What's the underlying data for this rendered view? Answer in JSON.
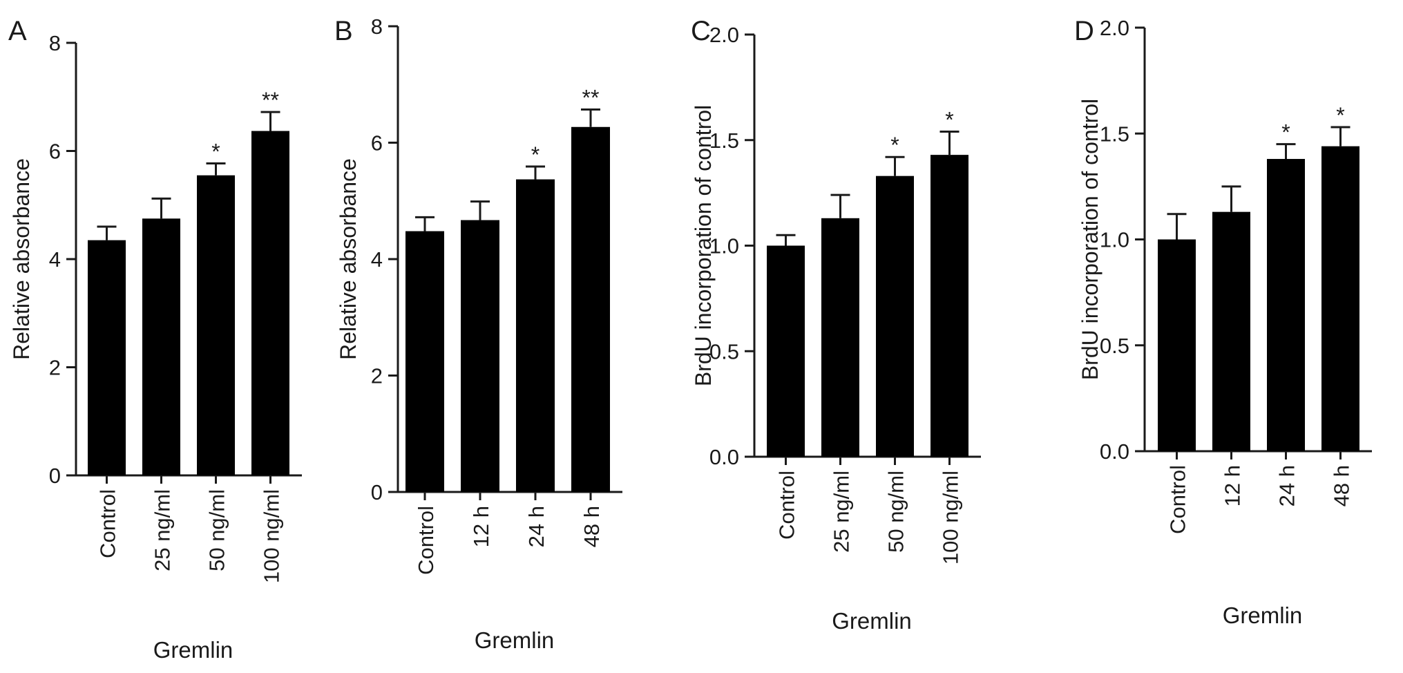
{
  "figure": {
    "background": "#ffffff",
    "bar_color": "#000000",
    "text_color": "#1a1a1a"
  },
  "chart_data": [
    {
      "panel_label": "A",
      "type": "bar",
      "categories": [
        "Control",
        "25 ng/ml",
        "50 ng/ml",
        "100 ng/ml"
      ],
      "values": [
        4.35,
        4.75,
        5.55,
        6.37
      ],
      "errors": [
        0.25,
        0.37,
        0.22,
        0.35
      ],
      "significance": [
        "",
        "",
        "*",
        "**"
      ],
      "ylabel": "Relative absorbance",
      "xlabel": "Gremlin",
      "ylim": [
        0,
        8
      ],
      "yticks": [
        "0",
        "2",
        "4",
        "6",
        "8"
      ],
      "grid": false
    },
    {
      "panel_label": "B",
      "type": "bar",
      "categories": [
        "Control",
        "12 h",
        "24 h",
        "48 h"
      ],
      "values": [
        4.48,
        4.67,
        5.37,
        6.27
      ],
      "errors": [
        0.24,
        0.32,
        0.22,
        0.3
      ],
      "significance": [
        "",
        "",
        "*",
        "**"
      ],
      "ylabel": "Relative absorbance",
      "xlabel": "Gremlin",
      "ylim": [
        0,
        8
      ],
      "yticks": [
        "0",
        "2",
        "4",
        "6",
        "8"
      ],
      "grid": false
    },
    {
      "panel_label": "C",
      "type": "bar",
      "categories": [
        "Control",
        "25 ng/ml",
        "50 ng/ml",
        "100 ng/ml"
      ],
      "values": [
        1.0,
        1.13,
        1.33,
        1.43
      ],
      "errors": [
        0.05,
        0.11,
        0.09,
        0.11
      ],
      "significance": [
        "",
        "",
        "*",
        "*"
      ],
      "ylabel": "BrdU incorporation of control",
      "xlabel": "Gremlin",
      "ylim": [
        0,
        2
      ],
      "yticks": [
        "0.0",
        "0.5",
        "1.0",
        "1.5",
        "2.0"
      ],
      "grid": false
    },
    {
      "panel_label": "D",
      "type": "bar",
      "categories": [
        "Control",
        "12 h",
        "24 h",
        "48 h"
      ],
      "values": [
        1.0,
        1.13,
        1.38,
        1.44
      ],
      "errors": [
        0.12,
        0.12,
        0.07,
        0.09
      ],
      "significance": [
        "",
        "",
        "*",
        "*"
      ],
      "ylabel": "BrdU incorporation of control",
      "xlabel": "Gremlin",
      "ylim": [
        0,
        2
      ],
      "yticks": [
        "0.0",
        "0.5",
        "1.0",
        "1.5",
        "2.0"
      ],
      "grid": false
    }
  ]
}
